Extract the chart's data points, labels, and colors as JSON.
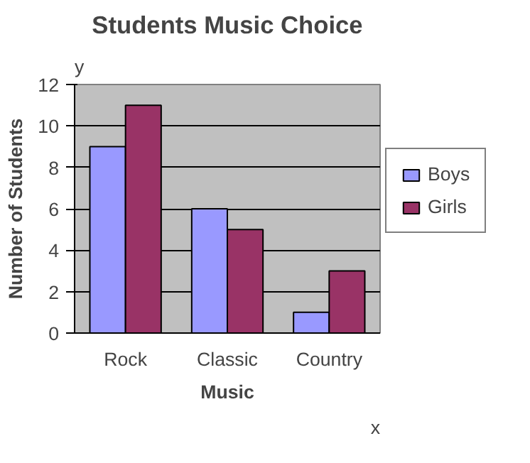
{
  "chart_data": {
    "type": "bar",
    "title": "Students Music Choice",
    "xlabel": "Music",
    "ylabel": "Number of Students",
    "categories": [
      "Rock",
      "Classic",
      "Country"
    ],
    "series": [
      {
        "name": "Boys",
        "color": "#9999ff",
        "values": [
          9,
          6,
          1
        ]
      },
      {
        "name": "Girls",
        "color": "#993366",
        "values": [
          11,
          5,
          3
        ]
      }
    ],
    "ylim": [
      0,
      12
    ],
    "yticks": [
      0,
      2,
      4,
      6,
      8,
      10,
      12
    ],
    "grid": "y",
    "legend": "right",
    "annotations": [
      "y",
      "x"
    ]
  }
}
